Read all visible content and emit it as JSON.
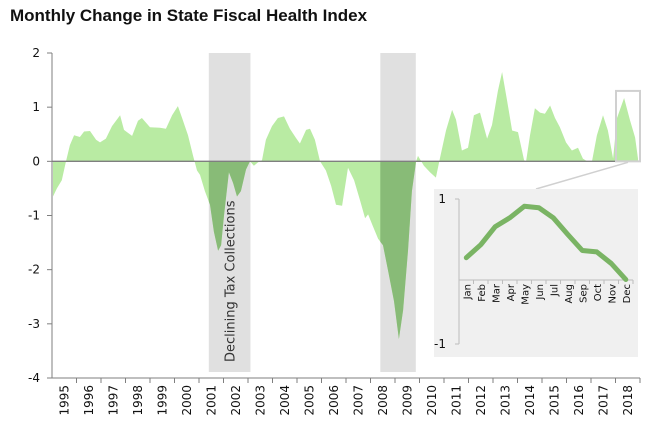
{
  "chart_data": {
    "type": "area",
    "title": "Monthly Change in State Fiscal Health Index",
    "xlabel": "",
    "ylabel": "",
    "ylim": [
      -4,
      2
    ],
    "yticks": [
      2,
      1,
      0,
      -1,
      -2,
      -3,
      -4
    ],
    "xlim": [
      1995,
      2019
    ],
    "xtick_labels": [
      "1995",
      "1996",
      "1997",
      "1998",
      "1999",
      "2000",
      "2001",
      "2002",
      "2003",
      "2004",
      "2005",
      "2006",
      "2007",
      "2008",
      "2009",
      "2010",
      "2011",
      "2012",
      "2013",
      "2014",
      "2015",
      "2016",
      "2017",
      "2018"
    ],
    "grid": false,
    "colors": {
      "positive_fill": "#b9eba3",
      "highlight_fill": "#88bb77",
      "band": "#e0e0e0",
      "axis": "#7f7f7f",
      "inset_bg": "#f0f0f0",
      "inset_line": "#7ab464",
      "callout": "#d0d0d0"
    },
    "series": [
      {
        "name": "Monthly change",
        "points": [
          [
            1995.04,
            -0.65
          ],
          [
            1995.2,
            -0.5
          ],
          [
            1995.4,
            -0.35
          ],
          [
            1995.57,
            0
          ],
          [
            1995.73,
            0.3
          ],
          [
            1995.9,
            0.48
          ],
          [
            1996.14,
            0.45
          ],
          [
            1996.31,
            0.55
          ],
          [
            1996.55,
            0.56
          ],
          [
            1996.8,
            0.4
          ],
          [
            1996.96,
            0.35
          ],
          [
            1997.2,
            0.42
          ],
          [
            1997.45,
            0.65
          ],
          [
            1997.78,
            0.85
          ],
          [
            1997.94,
            0.58
          ],
          [
            1998.27,
            0.47
          ],
          [
            1998.51,
            0.75
          ],
          [
            1998.67,
            0.8
          ],
          [
            1999.0,
            0.63
          ],
          [
            1999.41,
            0.62
          ],
          [
            1999.65,
            0.6
          ],
          [
            1999.9,
            0.85
          ],
          [
            2000.14,
            1.02
          ],
          [
            2000.31,
            0.8
          ],
          [
            2000.55,
            0.48
          ],
          [
            2000.76,
            0.1
          ],
          [
            2000.92,
            -0.17
          ],
          [
            2001.04,
            -0.25
          ],
          [
            2001.24,
            -0.55
          ],
          [
            2001.45,
            -0.8
          ],
          [
            2001.61,
            -1.3
          ],
          [
            2001.78,
            -1.65
          ],
          [
            2001.9,
            -1.55
          ],
          [
            2002.02,
            -1.0
          ],
          [
            2002.22,
            -0.2
          ],
          [
            2002.39,
            -0.4
          ],
          [
            2002.55,
            -0.65
          ],
          [
            2002.71,
            -0.55
          ],
          [
            2002.92,
            -0.15
          ],
          [
            2003.08,
            0
          ],
          [
            2003.24,
            -0.08
          ],
          [
            2003.41,
            -0.02
          ],
          [
            2003.57,
            0.02
          ],
          [
            2003.73,
            0.4
          ],
          [
            2003.98,
            0.65
          ],
          [
            2004.22,
            0.8
          ],
          [
            2004.47,
            0.83
          ],
          [
            2004.71,
            0.6
          ],
          [
            2004.96,
            0.43
          ],
          [
            2005.12,
            0.33
          ],
          [
            2005.37,
            0.58
          ],
          [
            2005.53,
            0.6
          ],
          [
            2005.73,
            0.4
          ],
          [
            2005.94,
            0
          ],
          [
            2006.18,
            -0.17
          ],
          [
            2006.39,
            -0.45
          ],
          [
            2006.59,
            -0.8
          ],
          [
            2006.84,
            -0.82
          ],
          [
            2007.08,
            -0.12
          ],
          [
            2007.33,
            -0.35
          ],
          [
            2007.57,
            -0.72
          ],
          [
            2007.78,
            -1.05
          ],
          [
            2007.9,
            -0.98
          ],
          [
            2008.1,
            -1.2
          ],
          [
            2008.31,
            -1.43
          ],
          [
            2008.51,
            -1.55
          ],
          [
            2008.71,
            -2.0
          ],
          [
            2008.96,
            -2.58
          ],
          [
            2009.16,
            -3.28
          ],
          [
            2009.33,
            -2.75
          ],
          [
            2009.53,
            -1.65
          ],
          [
            2009.69,
            -0.55
          ],
          [
            2009.86,
            0
          ],
          [
            2009.94,
            0.1
          ],
          [
            2010.18,
            -0.08
          ],
          [
            2010.43,
            -0.2
          ],
          [
            2010.67,
            -0.3
          ],
          [
            2010.84,
            0.07
          ],
          [
            2011.08,
            0.57
          ],
          [
            2011.33,
            0.95
          ],
          [
            2011.49,
            0.77
          ],
          [
            2011.73,
            0.2
          ],
          [
            2011.98,
            0.25
          ],
          [
            2012.22,
            0.85
          ],
          [
            2012.47,
            0.9
          ],
          [
            2012.76,
            0.42
          ],
          [
            2012.96,
            0.67
          ],
          [
            2013.2,
            1.3
          ],
          [
            2013.37,
            1.65
          ],
          [
            2013.57,
            1.13
          ],
          [
            2013.78,
            0.57
          ],
          [
            2014.02,
            0.54
          ],
          [
            2014.27,
            0.02
          ],
          [
            2014.35,
            0
          ],
          [
            2014.51,
            0.48
          ],
          [
            2014.71,
            0.98
          ],
          [
            2014.92,
            0.9
          ],
          [
            2015.12,
            0.88
          ],
          [
            2015.33,
            1.03
          ],
          [
            2015.53,
            0.8
          ],
          [
            2015.73,
            0.63
          ],
          [
            2015.98,
            0.35
          ],
          [
            2016.22,
            0.2
          ],
          [
            2016.47,
            0.25
          ],
          [
            2016.67,
            0.05
          ],
          [
            2016.84,
            0
          ],
          [
            2017.04,
            0
          ],
          [
            2017.24,
            0.48
          ],
          [
            2017.49,
            0.85
          ],
          [
            2017.69,
            0.57
          ],
          [
            2017.9,
            0.05
          ],
          [
            2018.06,
            0.8
          ],
          [
            2018.35,
            1.17
          ],
          [
            2018.59,
            0.76
          ],
          [
            2018.8,
            0.44
          ],
          [
            2018.92,
            0.05
          ]
        ]
      }
    ],
    "bands": [
      {
        "name": "Declining Tax Collections",
        "label": "Declining Tax Collections",
        "from": 2001.4,
        "to": 2003.1
      },
      {
        "name": "",
        "label": "",
        "from": 2008.4,
        "to": 2009.85
      }
    ],
    "highlight_box": {
      "from": 2018.0,
      "to": 2019.0,
      "ymin": 0,
      "ymax": 1.3
    },
    "inset": {
      "type": "line",
      "ylim": [
        -1,
        1
      ],
      "yticks": [
        1,
        -1
      ],
      "categories": [
        "Jan",
        "Feb",
        "Mar",
        "Apr",
        "May",
        "Jun",
        "Jul",
        "Aug",
        "Sep",
        "Oct",
        "Nov",
        "Dec"
      ],
      "values": [
        0.19,
        0.37,
        0.62,
        0.74,
        0.9,
        0.88,
        0.74,
        0.51,
        0.29,
        0.27,
        0.11,
        -0.11
      ]
    }
  }
}
